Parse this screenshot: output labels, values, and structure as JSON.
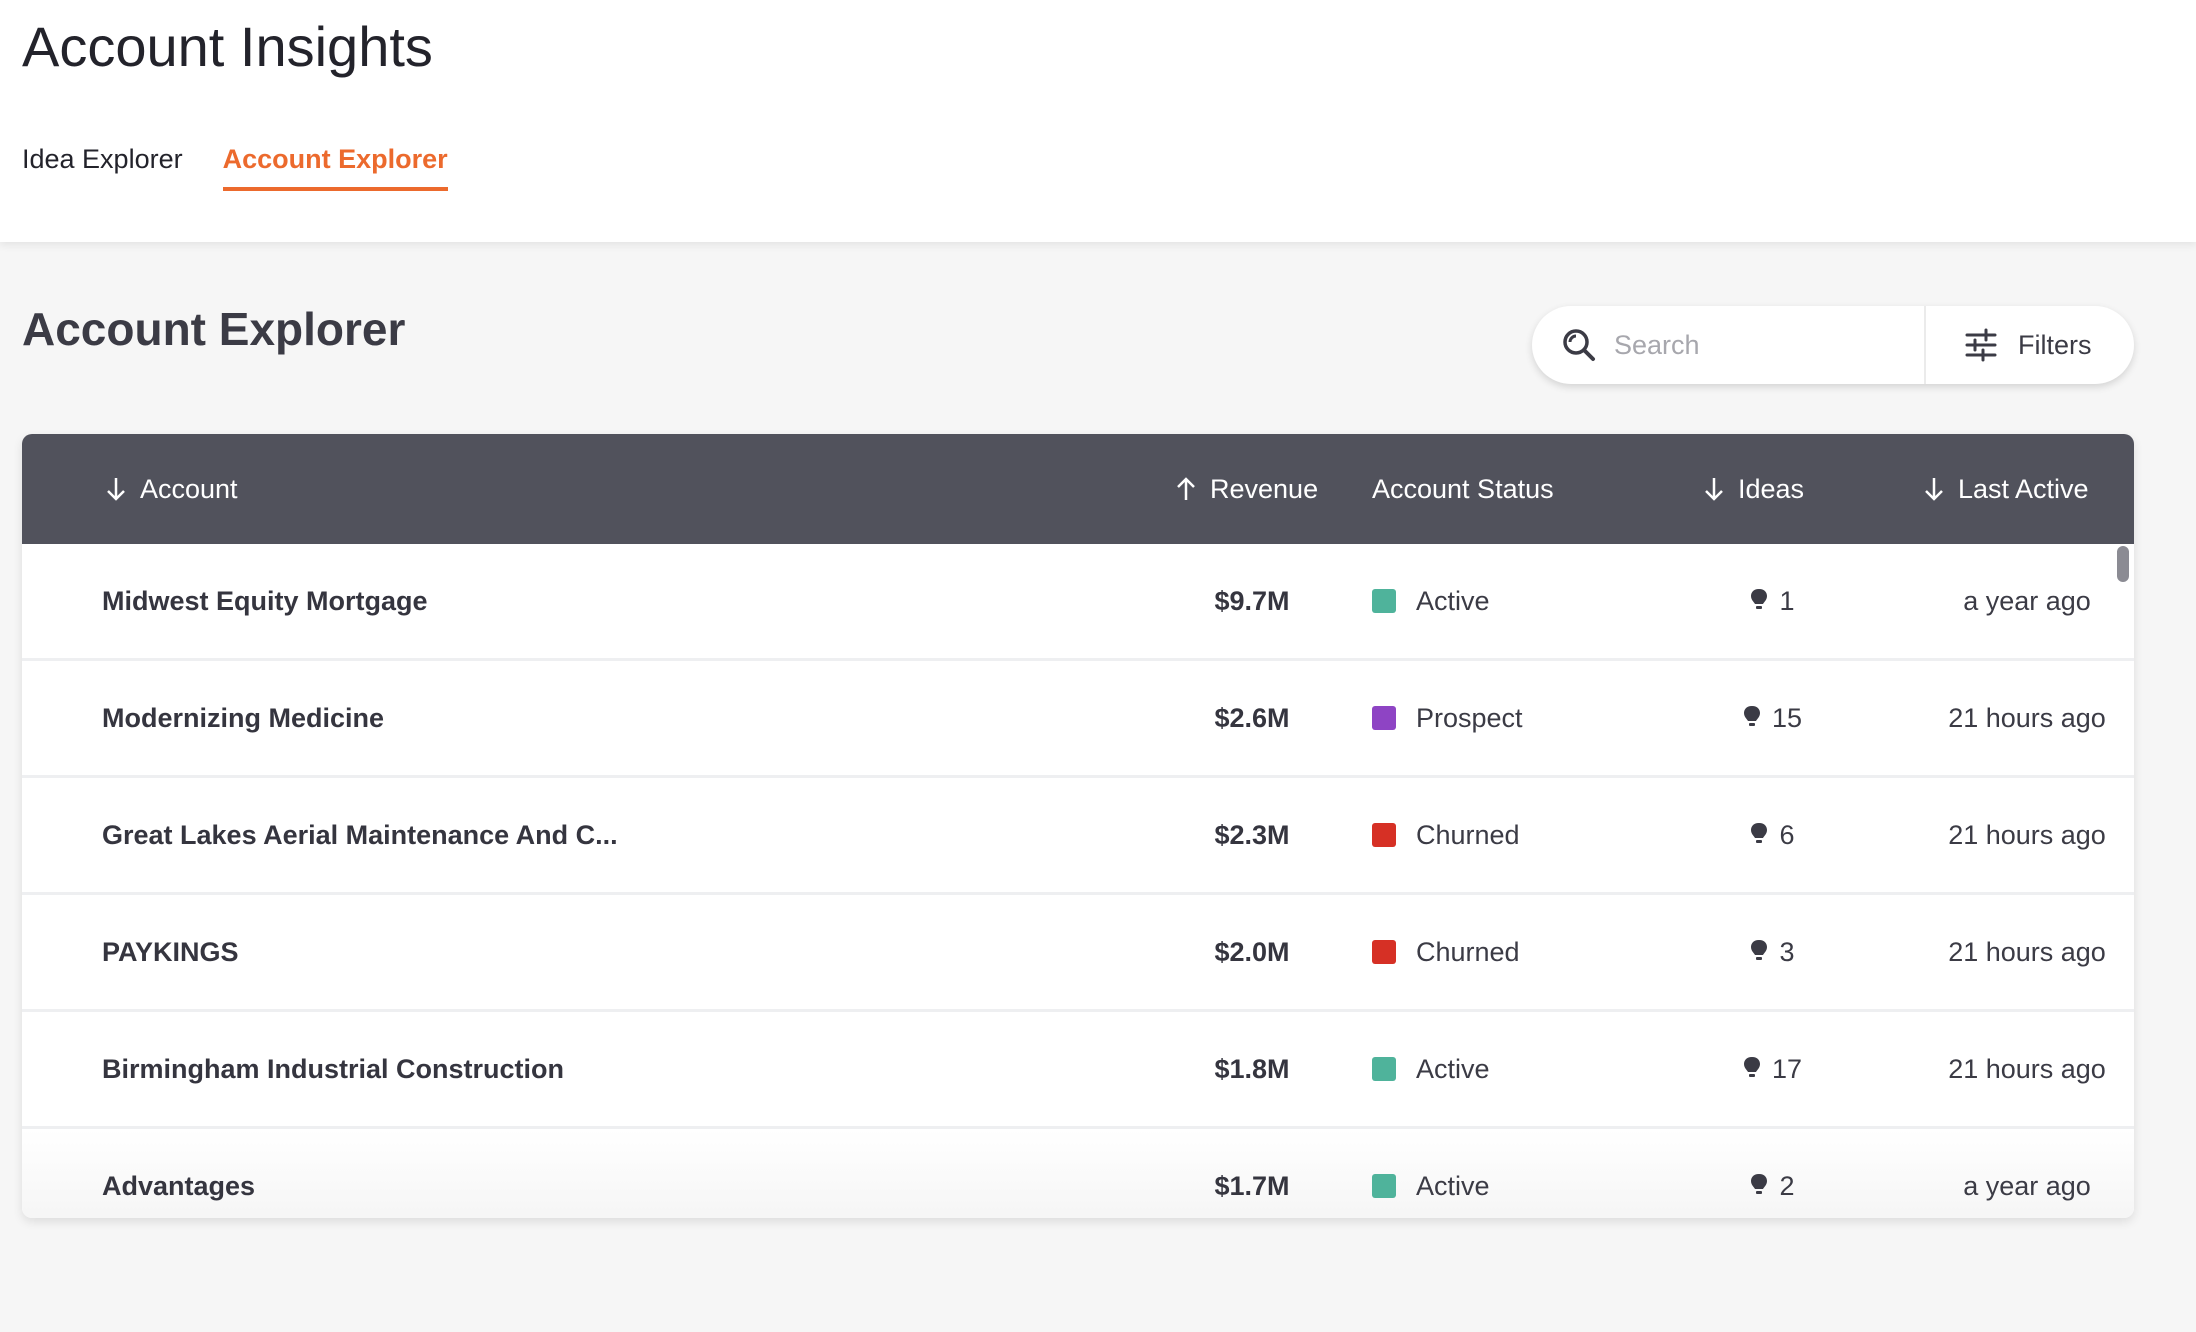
{
  "app": {
    "title": "Account Insights"
  },
  "tabs": [
    {
      "label": "Idea Explorer",
      "active": false
    },
    {
      "label": "Account Explorer",
      "active": true
    }
  ],
  "section": {
    "title": "Account Explorer"
  },
  "search": {
    "placeholder": "Search",
    "value": ""
  },
  "filters": {
    "label": "Filters"
  },
  "table": {
    "columns": {
      "account": "Account",
      "revenue": "Revenue",
      "status": "Account Status",
      "ideas": "Ideas",
      "last_active": "Last Active"
    },
    "sort_icons": {
      "account": "arrow-down-icon",
      "revenue": "arrow-up-icon",
      "ideas": "arrow-down-icon",
      "last_active": "arrow-down-icon"
    },
    "rows": [
      {
        "account": "Midwest Equity Mortgage",
        "revenue": "$9.7M",
        "status": "Active",
        "status_color": "#4fb39b",
        "ideas": "1",
        "last_active": "a year ago"
      },
      {
        "account": "Modernizing Medicine",
        "revenue": "$2.6M",
        "status": "Prospect",
        "status_color": "#8e44c4",
        "ideas": "15",
        "last_active": "21 hours ago"
      },
      {
        "account": "Great Lakes Aerial Maintenance And C...",
        "revenue": "$2.3M",
        "status": "Churned",
        "status_color": "#d63025",
        "ideas": "6",
        "last_active": "21 hours ago"
      },
      {
        "account": "PAYKINGS",
        "revenue": "$2.0M",
        "status": "Churned",
        "status_color": "#d63025",
        "ideas": "3",
        "last_active": "21 hours ago"
      },
      {
        "account": "Birmingham Industrial Construction",
        "revenue": "$1.8M",
        "status": "Active",
        "status_color": "#4fb39b",
        "ideas": "17",
        "last_active": "21 hours ago"
      },
      {
        "account": "Advantages",
        "revenue": "$1.7M",
        "status": "Active",
        "status_color": "#4fb39b",
        "ideas": "2",
        "last_active": "a year ago"
      }
    ]
  },
  "colors": {
    "accent": "#ec6a2d",
    "header_bg": "#51525c"
  }
}
